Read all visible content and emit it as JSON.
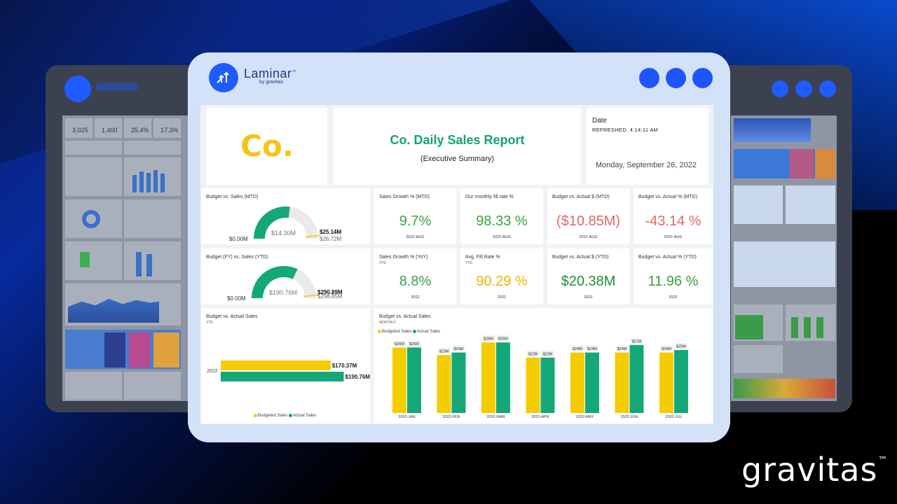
{
  "brand": {
    "laminar_name": "Laminar",
    "laminar_tm": "™",
    "laminar_sub": "by gravitas",
    "gravitas_name": "gravitas",
    "gravitas_tm": "™",
    "colors": {
      "accent": "#1f55ff",
      "green": "#16a36f",
      "yellow": "#f5c518",
      "bar_green": "#14a879",
      "bar_yellow": "#f5cc00"
    }
  },
  "report": {
    "company_logo": "Co.",
    "title_company": "Co.",
    "title": "Daily Sales Report",
    "subtitle": "(Executive Summary)",
    "date_label": "Date",
    "refreshed": "REFRESHED: 4:14:11 AM",
    "date_value": "Monday, September 26, 2022"
  },
  "gauges": [
    {
      "title": "Budget vs. Sales (MTD)",
      "min_label": "$0.00M",
      "value_label": "$14.30M",
      "target_label": "$25.14M",
      "max_label": "$26.72M",
      "fill_ratio": 0.54
    },
    {
      "title": "Budget (FY) vs. Sales (YTD)",
      "min_label": "$0.00M",
      "value_label": "$190.76M",
      "target_label": "$290.89M",
      "max_label": "$298.85M",
      "fill_ratio": 0.64
    }
  ],
  "kpis_row1": [
    {
      "title": "Sales Growth % (MTD)",
      "value": "9.7%",
      "period": "2022-AUG",
      "color": "green"
    },
    {
      "title": "Our monthly fill rate %",
      "value": "98.33 %",
      "period": "2022-AUG",
      "color": "green"
    },
    {
      "title": "Budget vs. Actual $ (MTD)",
      "value": "($10.85M)",
      "period": "2022-AUG",
      "color": "red"
    },
    {
      "title": "Budget vs. Actual % (MTD)",
      "value": "-43.14 %",
      "period": "2022-AUG",
      "color": "red"
    }
  ],
  "kpis_row2": [
    {
      "title": "Sales Growth % (YoY)",
      "sub": "YTD",
      "value": "8.8%",
      "period": "2022",
      "color": "green"
    },
    {
      "title": "Avg. Fill Rate %",
      "sub": "YTD",
      "value": "90.29 %",
      "period": "2022",
      "color": "orange"
    },
    {
      "title": "Budget vs. Actual $ (YTD)",
      "sub": "",
      "value": "$20.38M",
      "period": "2022",
      "color": "dgreen"
    },
    {
      "title": "Budget vs. Actual % (YTD)",
      "sub": "",
      "value": "11.96 %",
      "period": "2022",
      "color": "green"
    }
  ],
  "ytd_chart": {
    "title": "Budget vs. Actual Sales",
    "sub": "YTD",
    "legend_budget": "Budgeted Sales",
    "legend_actual": "Actual Sales"
  },
  "monthly_chart": {
    "title": "Budget vs. Actual Sales",
    "sub": "MONTHLY",
    "legend_budget": "Budgeted Sales",
    "legend_actual": "Actual Sales"
  },
  "chart_data": [
    {
      "type": "bar",
      "orientation": "horizontal",
      "categories": [
        "2022"
      ],
      "series": [
        {
          "name": "Budgeted Sales",
          "values": [
            170.37
          ],
          "labels": [
            "$170.37M"
          ]
        },
        {
          "name": "Actual Sales",
          "values": [
            190.76
          ],
          "labels": [
            "$190.76M"
          ]
        }
      ],
      "xlim": [
        0,
        200
      ]
    },
    {
      "type": "bar",
      "categories": [
        "2022-JAN",
        "2022-FEB",
        "2022-MAR",
        "2022-APR",
        "2022-MAY",
        "2022-JUN",
        "2022-JUL"
      ],
      "series": [
        {
          "name": "Budgeted Sales",
          "values": [
            26,
            23,
            28,
            22,
            24,
            24,
            24
          ],
          "labels": [
            "$26M",
            "$23M",
            "$28M",
            "$22M",
            "$24M",
            "$24M",
            "$24M"
          ]
        },
        {
          "name": "Actual Sales",
          "values": [
            26,
            24,
            28,
            22,
            24,
            27,
            25
          ],
          "labels": [
            "$26M",
            "$24M",
            "$28M",
            "$22M",
            "$24M",
            "$27M",
            "$25M"
          ]
        }
      ],
      "ylim": [
        0,
        30
      ]
    }
  ],
  "background_previews": {
    "left_kpis": [
      "3,025",
      "1,400",
      "25.4%",
      "17.3%"
    ]
  }
}
